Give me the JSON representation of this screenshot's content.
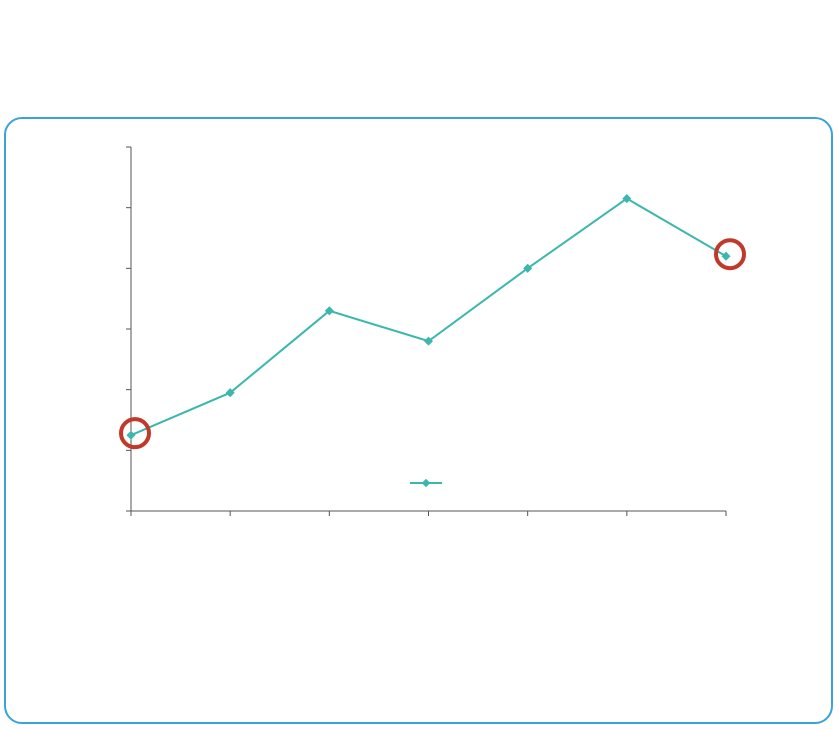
{
  "header": {
    "line1": "",
    "line2": "",
    "line3": ""
  },
  "caption": {
    "text": ""
  },
  "colors": {
    "series": "#3cb7ad",
    "highlight": "#c0392b",
    "frame": "#3ba3dc",
    "axis": "#555555"
  },
  "chart_data": {
    "type": "line",
    "title": "",
    "xlabel": "",
    "ylabel": "",
    "x": [
      1,
      2,
      3,
      4,
      5,
      6,
      7
    ],
    "ylim": [
      0,
      6
    ],
    "grid": false,
    "legend_position": "bottom-center",
    "series": [
      {
        "values": [
          1.25,
          1.95,
          3.3,
          2.8,
          4.0,
          5.15,
          4.2
        ]
      }
    ],
    "highlighted_points": [
      0,
      6
    ]
  }
}
